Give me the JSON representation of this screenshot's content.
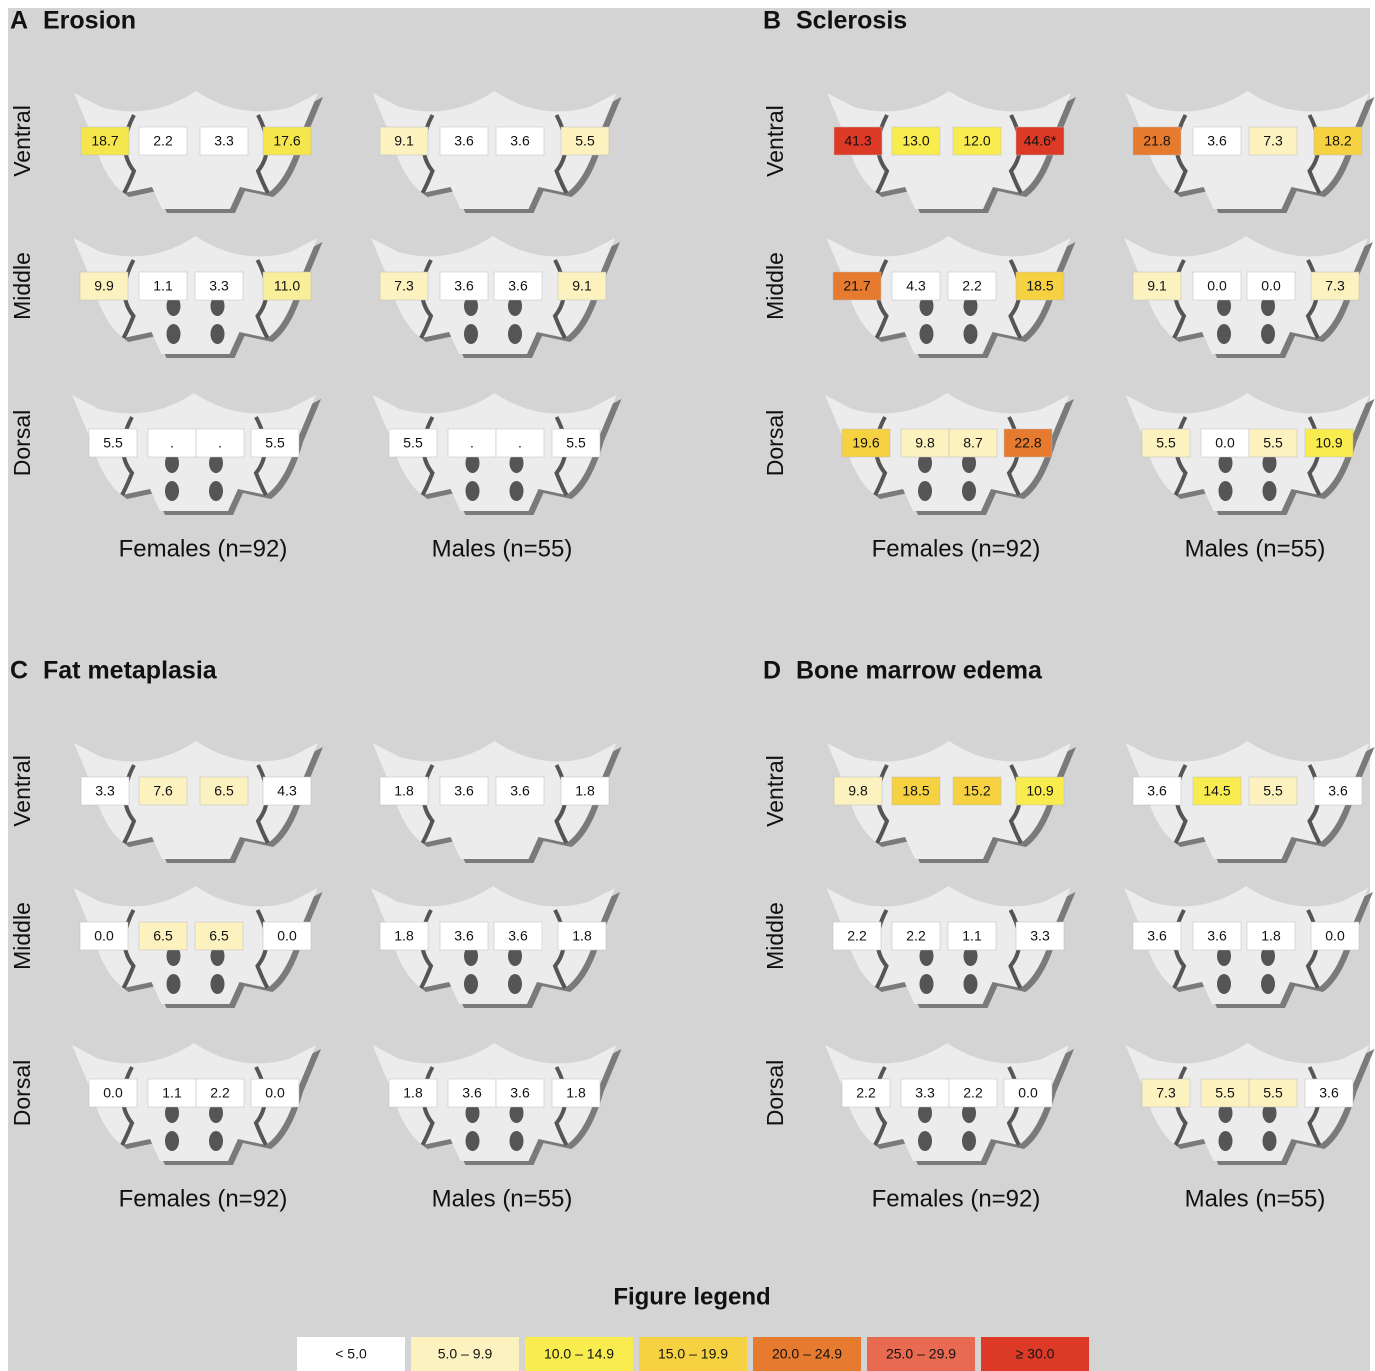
{
  "panels": [
    {
      "letter": "A",
      "title": "Erosion",
      "row_labels": [
        "Ventral",
        "Middle",
        "Dorsal"
      ],
      "groups": [
        {
          "label": "Females (n=92)",
          "rows": [
            [
              {
                "text": "18.7",
                "color": "#f6e64e"
              },
              {
                "text": "2.2",
                "color": "#ffffff"
              },
              {
                "text": "3.3",
                "color": "#ffffff"
              },
              {
                "text": "17.6",
                "color": "#f6e64e"
              }
            ],
            [
              {
                "text": "9.9",
                "color": "#fbf2c0"
              },
              {
                "text": "1.1",
                "color": "#ffffff"
              },
              {
                "text": "3.3",
                "color": "#ffffff"
              },
              {
                "text": "11.0",
                "color": "#f9ef9a"
              }
            ],
            [
              {
                "text": "5.5",
                "color": "#ffffff"
              },
              {
                "text": ".",
                "color": "#ffffff"
              },
              {
                "text": ".",
                "color": "#ffffff"
              },
              {
                "text": "5.5",
                "color": "#ffffff"
              }
            ]
          ]
        },
        {
          "label": "Males (n=55)",
          "rows": [
            [
              {
                "text": "9.1",
                "color": "#fbf2c0"
              },
              {
                "text": "3.6",
                "color": "#ffffff"
              },
              {
                "text": "3.6",
                "color": "#ffffff"
              },
              {
                "text": "5.5",
                "color": "#fbf2c0"
              }
            ],
            [
              {
                "text": "7.3",
                "color": "#fbf2c0"
              },
              {
                "text": "3.6",
                "color": "#ffffff"
              },
              {
                "text": "3.6",
                "color": "#ffffff"
              },
              {
                "text": "9.1",
                "color": "#fbf2c0"
              }
            ],
            [
              {
                "text": "5.5",
                "color": "#ffffff"
              },
              {
                "text": ".",
                "color": "#ffffff"
              },
              {
                "text": ".",
                "color": "#ffffff"
              },
              {
                "text": "5.5",
                "color": "#ffffff"
              }
            ]
          ]
        }
      ]
    },
    {
      "letter": "B",
      "title": "Sclerosis",
      "row_labels": [
        "Ventral",
        "Middle",
        "Dorsal"
      ],
      "groups": [
        {
          "label": "Females (n=92)",
          "rows": [
            [
              {
                "text": "41.3",
                "color": "#dc3a26"
              },
              {
                "text": "13.0",
                "color": "#f9ec4f"
              },
              {
                "text": "12.0",
                "color": "#f9ec4f"
              },
              {
                "text": "44.6*",
                "color": "#dc3a26"
              }
            ],
            [
              {
                "text": "21.7",
                "color": "#e67a2e"
              },
              {
                "text": "4.3",
                "color": "#ffffff"
              },
              {
                "text": "2.2",
                "color": "#ffffff"
              },
              {
                "text": "18.5",
                "color": "#f6d243"
              }
            ],
            [
              {
                "text": "19.6",
                "color": "#f6d243"
              },
              {
                "text": "9.8",
                "color": "#fbf2c0"
              },
              {
                "text": "8.7",
                "color": "#fbf2c0"
              },
              {
                "text": "22.8",
                "color": "#e67a2e"
              }
            ]
          ]
        },
        {
          "label": "Males (n=55)",
          "rows": [
            [
              {
                "text": "21.8",
                "color": "#e67a2e"
              },
              {
                "text": "3.6",
                "color": "#ffffff"
              },
              {
                "text": "7.3",
                "color": "#fbf2c0"
              },
              {
                "text": "18.2",
                "color": "#f6d243"
              }
            ],
            [
              {
                "text": "9.1",
                "color": "#fbf2c0"
              },
              {
                "text": "0.0",
                "color": "#ffffff"
              },
              {
                "text": "0.0",
                "color": "#ffffff"
              },
              {
                "text": "7.3",
                "color": "#fbf2c0"
              }
            ],
            [
              {
                "text": "5.5",
                "color": "#fbf2c0"
              },
              {
                "text": "0.0",
                "color": "#ffffff"
              },
              {
                "text": "5.5",
                "color": "#fbf2c0"
              },
              {
                "text": "10.9",
                "color": "#f9ec4f"
              }
            ]
          ]
        }
      ]
    },
    {
      "letter": "C",
      "title": "Fat metaplasia",
      "row_labels": [
        "Ventral",
        "Middle",
        "Dorsal"
      ],
      "groups": [
        {
          "label": "Females (n=92)",
          "rows": [
            [
              {
                "text": "3.3",
                "color": "#ffffff"
              },
              {
                "text": "7.6",
                "color": "#fbf2c0"
              },
              {
                "text": "6.5",
                "color": "#fbf2c0"
              },
              {
                "text": "4.3",
                "color": "#ffffff"
              }
            ],
            [
              {
                "text": "0.0",
                "color": "#ffffff"
              },
              {
                "text": "6.5",
                "color": "#fbf2c0"
              },
              {
                "text": "6.5",
                "color": "#fbf2c0"
              },
              {
                "text": "0.0",
                "color": "#ffffff"
              }
            ],
            [
              {
                "text": "0.0",
                "color": "#ffffff"
              },
              {
                "text": "1.1",
                "color": "#ffffff"
              },
              {
                "text": "2.2",
                "color": "#ffffff"
              },
              {
                "text": "0.0",
                "color": "#ffffff"
              }
            ]
          ]
        },
        {
          "label": "Males (n=55)",
          "rows": [
            [
              {
                "text": "1.8",
                "color": "#ffffff"
              },
              {
                "text": "3.6",
                "color": "#ffffff"
              },
              {
                "text": "3.6",
                "color": "#ffffff"
              },
              {
                "text": "1.8",
                "color": "#ffffff"
              }
            ],
            [
              {
                "text": "1.8",
                "color": "#ffffff"
              },
              {
                "text": "3.6",
                "color": "#ffffff"
              },
              {
                "text": "3.6",
                "color": "#ffffff"
              },
              {
                "text": "1.8",
                "color": "#ffffff"
              }
            ],
            [
              {
                "text": "1.8",
                "color": "#ffffff"
              },
              {
                "text": "3.6",
                "color": "#ffffff"
              },
              {
                "text": "3.6",
                "color": "#ffffff"
              },
              {
                "text": "1.8",
                "color": "#ffffff"
              }
            ]
          ]
        }
      ]
    },
    {
      "letter": "D",
      "title": "Bone marrow edema",
      "row_labels": [
        "Ventral",
        "Middle",
        "Dorsal"
      ],
      "groups": [
        {
          "label": "Females (n=92)",
          "rows": [
            [
              {
                "text": "9.8",
                "color": "#fbf2c0"
              },
              {
                "text": "18.5",
                "color": "#f6d243"
              },
              {
                "text": "15.2",
                "color": "#f6d243"
              },
              {
                "text": "10.9",
                "color": "#f9ec4f"
              }
            ],
            [
              {
                "text": "2.2",
                "color": "#ffffff"
              },
              {
                "text": "2.2",
                "color": "#ffffff"
              },
              {
                "text": "1.1",
                "color": "#ffffff"
              },
              {
                "text": "3.3",
                "color": "#ffffff"
              }
            ],
            [
              {
                "text": "2.2",
                "color": "#ffffff"
              },
              {
                "text": "3.3",
                "color": "#ffffff"
              },
              {
                "text": "2.2",
                "color": "#ffffff"
              },
              {
                "text": "0.0",
                "color": "#ffffff"
              }
            ]
          ]
        },
        {
          "label": "Males (n=55)",
          "rows": [
            [
              {
                "text": "3.6",
                "color": "#ffffff"
              },
              {
                "text": "14.5",
                "color": "#f9ec4f"
              },
              {
                "text": "5.5",
                "color": "#fbf2c0"
              },
              {
                "text": "3.6",
                "color": "#ffffff"
              }
            ],
            [
              {
                "text": "3.6",
                "color": "#ffffff"
              },
              {
                "text": "3.6",
                "color": "#ffffff"
              },
              {
                "text": "1.8",
                "color": "#ffffff"
              },
              {
                "text": "0.0",
                "color": "#ffffff"
              }
            ],
            [
              {
                "text": "7.3",
                "color": "#fbf2c0"
              },
              {
                "text": "5.5",
                "color": "#fbf2c0"
              },
              {
                "text": "5.5",
                "color": "#fbf2c0"
              },
              {
                "text": "3.6",
                "color": "#ffffff"
              }
            ]
          ]
        }
      ]
    }
  ],
  "legend": {
    "title": "Figure legend",
    "items": [
      {
        "label": "< 5.0",
        "color": "#ffffff"
      },
      {
        "label": "5.0 – 9.9",
        "color": "#fbf2c0"
      },
      {
        "label": "10.0 – 14.9",
        "color": "#f9ec4f"
      },
      {
        "label": "15.0 – 19.9",
        "color": "#f6d243"
      },
      {
        "label": "20.0 – 24.9",
        "color": "#e67a2e"
      },
      {
        "label": "25.0 – 29.9",
        "color": "#e86a50"
      },
      {
        "label": "≥ 30.0",
        "color": "#dc3a26"
      }
    ]
  }
}
